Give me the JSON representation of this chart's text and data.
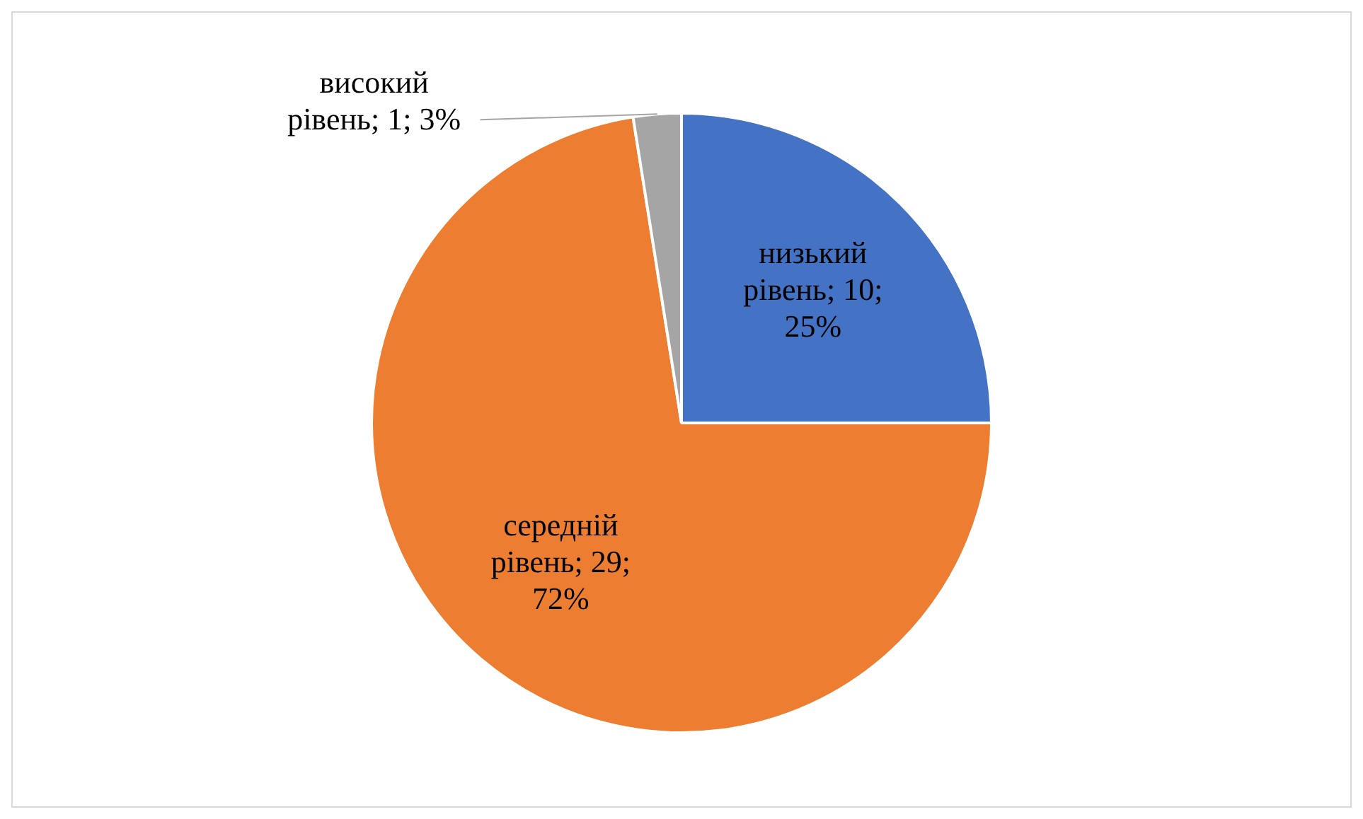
{
  "chart_data": {
    "type": "pie",
    "categories": [
      "низький рівень",
      "середній рівень",
      "високий рівень"
    ],
    "values": [
      10,
      29,
      1
    ],
    "value_labels": [
      "10; 25%",
      "29; 72%",
      "1; 3%"
    ],
    "colors": [
      "#4472c4",
      "#ed7d31",
      "#a5a5a5"
    ],
    "legend": false
  }
}
